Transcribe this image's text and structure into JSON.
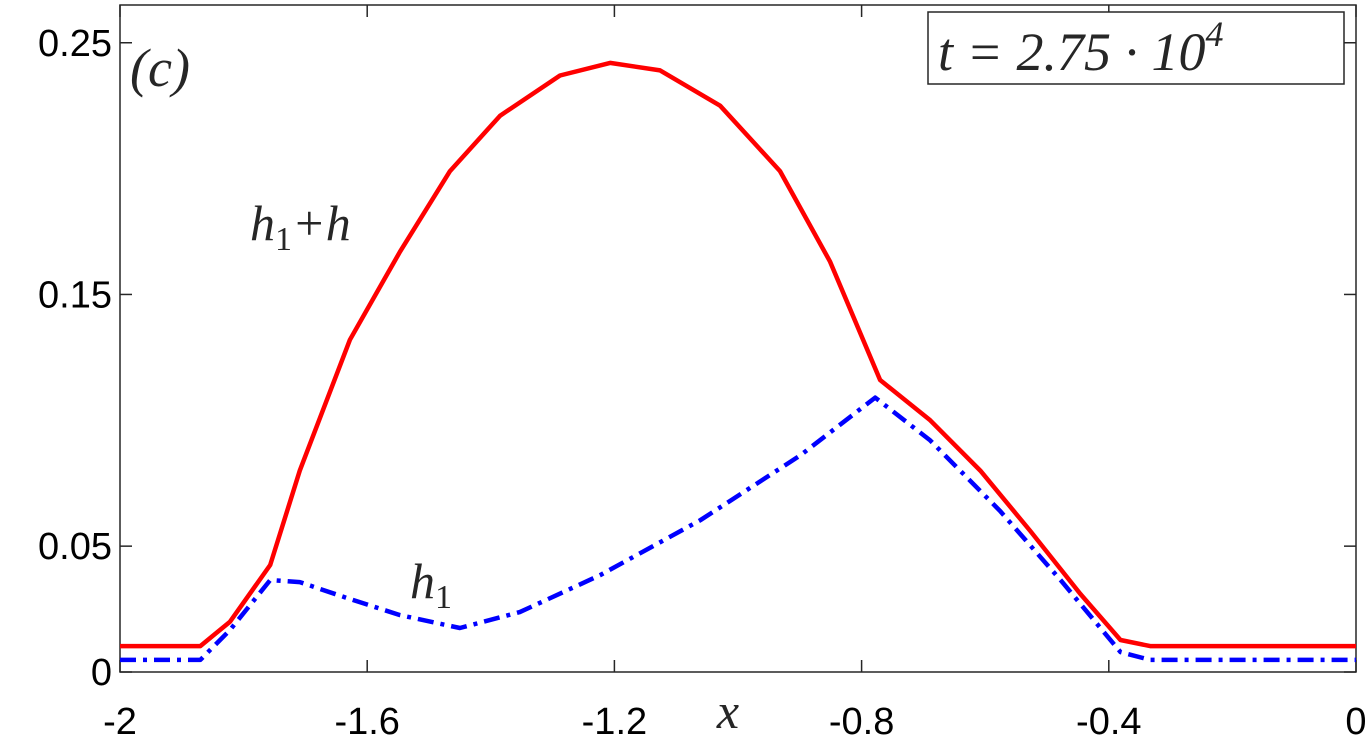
{
  "chart_data": {
    "type": "line",
    "panel_label": "(c)",
    "x_label": "x",
    "time_label": {
      "text": "t = 2.75 · 10",
      "sup": "4"
    },
    "xlim": [
      -2,
      0
    ],
    "xticks": [
      -2,
      -1.6,
      -1.2,
      -0.8,
      -0.4,
      0
    ],
    "ylim": [
      0,
      0.265
    ],
    "yticks": [
      0,
      0.05,
      0.15,
      0.25
    ],
    "series": [
      {
        "label": {
          "base": "h",
          "sub": "1",
          "tail": "+h"
        },
        "color": "#ff0000",
        "style": "solid",
        "x": [
          -2,
          -1.87,
          -1.822,
          -1.757,
          -1.709,
          -1.628,
          -1.547,
          -1.466,
          -1.385,
          -1.288,
          -1.207,
          -1.126,
          -1.029,
          -0.932,
          -0.851,
          -0.77,
          -0.689,
          -0.608,
          -0.527,
          -0.446,
          -0.381,
          -0.333,
          0
        ],
        "values": [
          0.0103,
          0.0103,
          0.02,
          0.0425,
          0.08,
          0.132,
          0.167,
          0.199,
          0.221,
          0.237,
          0.242,
          0.239,
          0.225,
          0.199,
          0.163,
          0.116,
          0.1,
          0.08,
          0.056,
          0.031,
          0.0127,
          0.0103,
          0.0103
        ]
      },
      {
        "label": {
          "base": "h",
          "sub": "1"
        },
        "color": "#0000ff",
        "style": "dashdot",
        "x": [
          -2,
          -1.87,
          -1.822,
          -1.757,
          -1.709,
          -1.628,
          -1.547,
          -1.45,
          -1.353,
          -1.223,
          -1.061,
          -0.899,
          -0.778,
          -0.689,
          -0.576,
          -0.478,
          -0.381,
          -0.333,
          0
        ],
        "values": [
          0.0048,
          0.0048,
          0.0167,
          0.0365,
          0.0357,
          0.029,
          0.0226,
          0.0175,
          0.0238,
          0.0385,
          0.0603,
          0.0861,
          0.109,
          0.092,
          0.064,
          0.0365,
          0.0079,
          0.0048,
          0.0048
        ]
      }
    ]
  }
}
